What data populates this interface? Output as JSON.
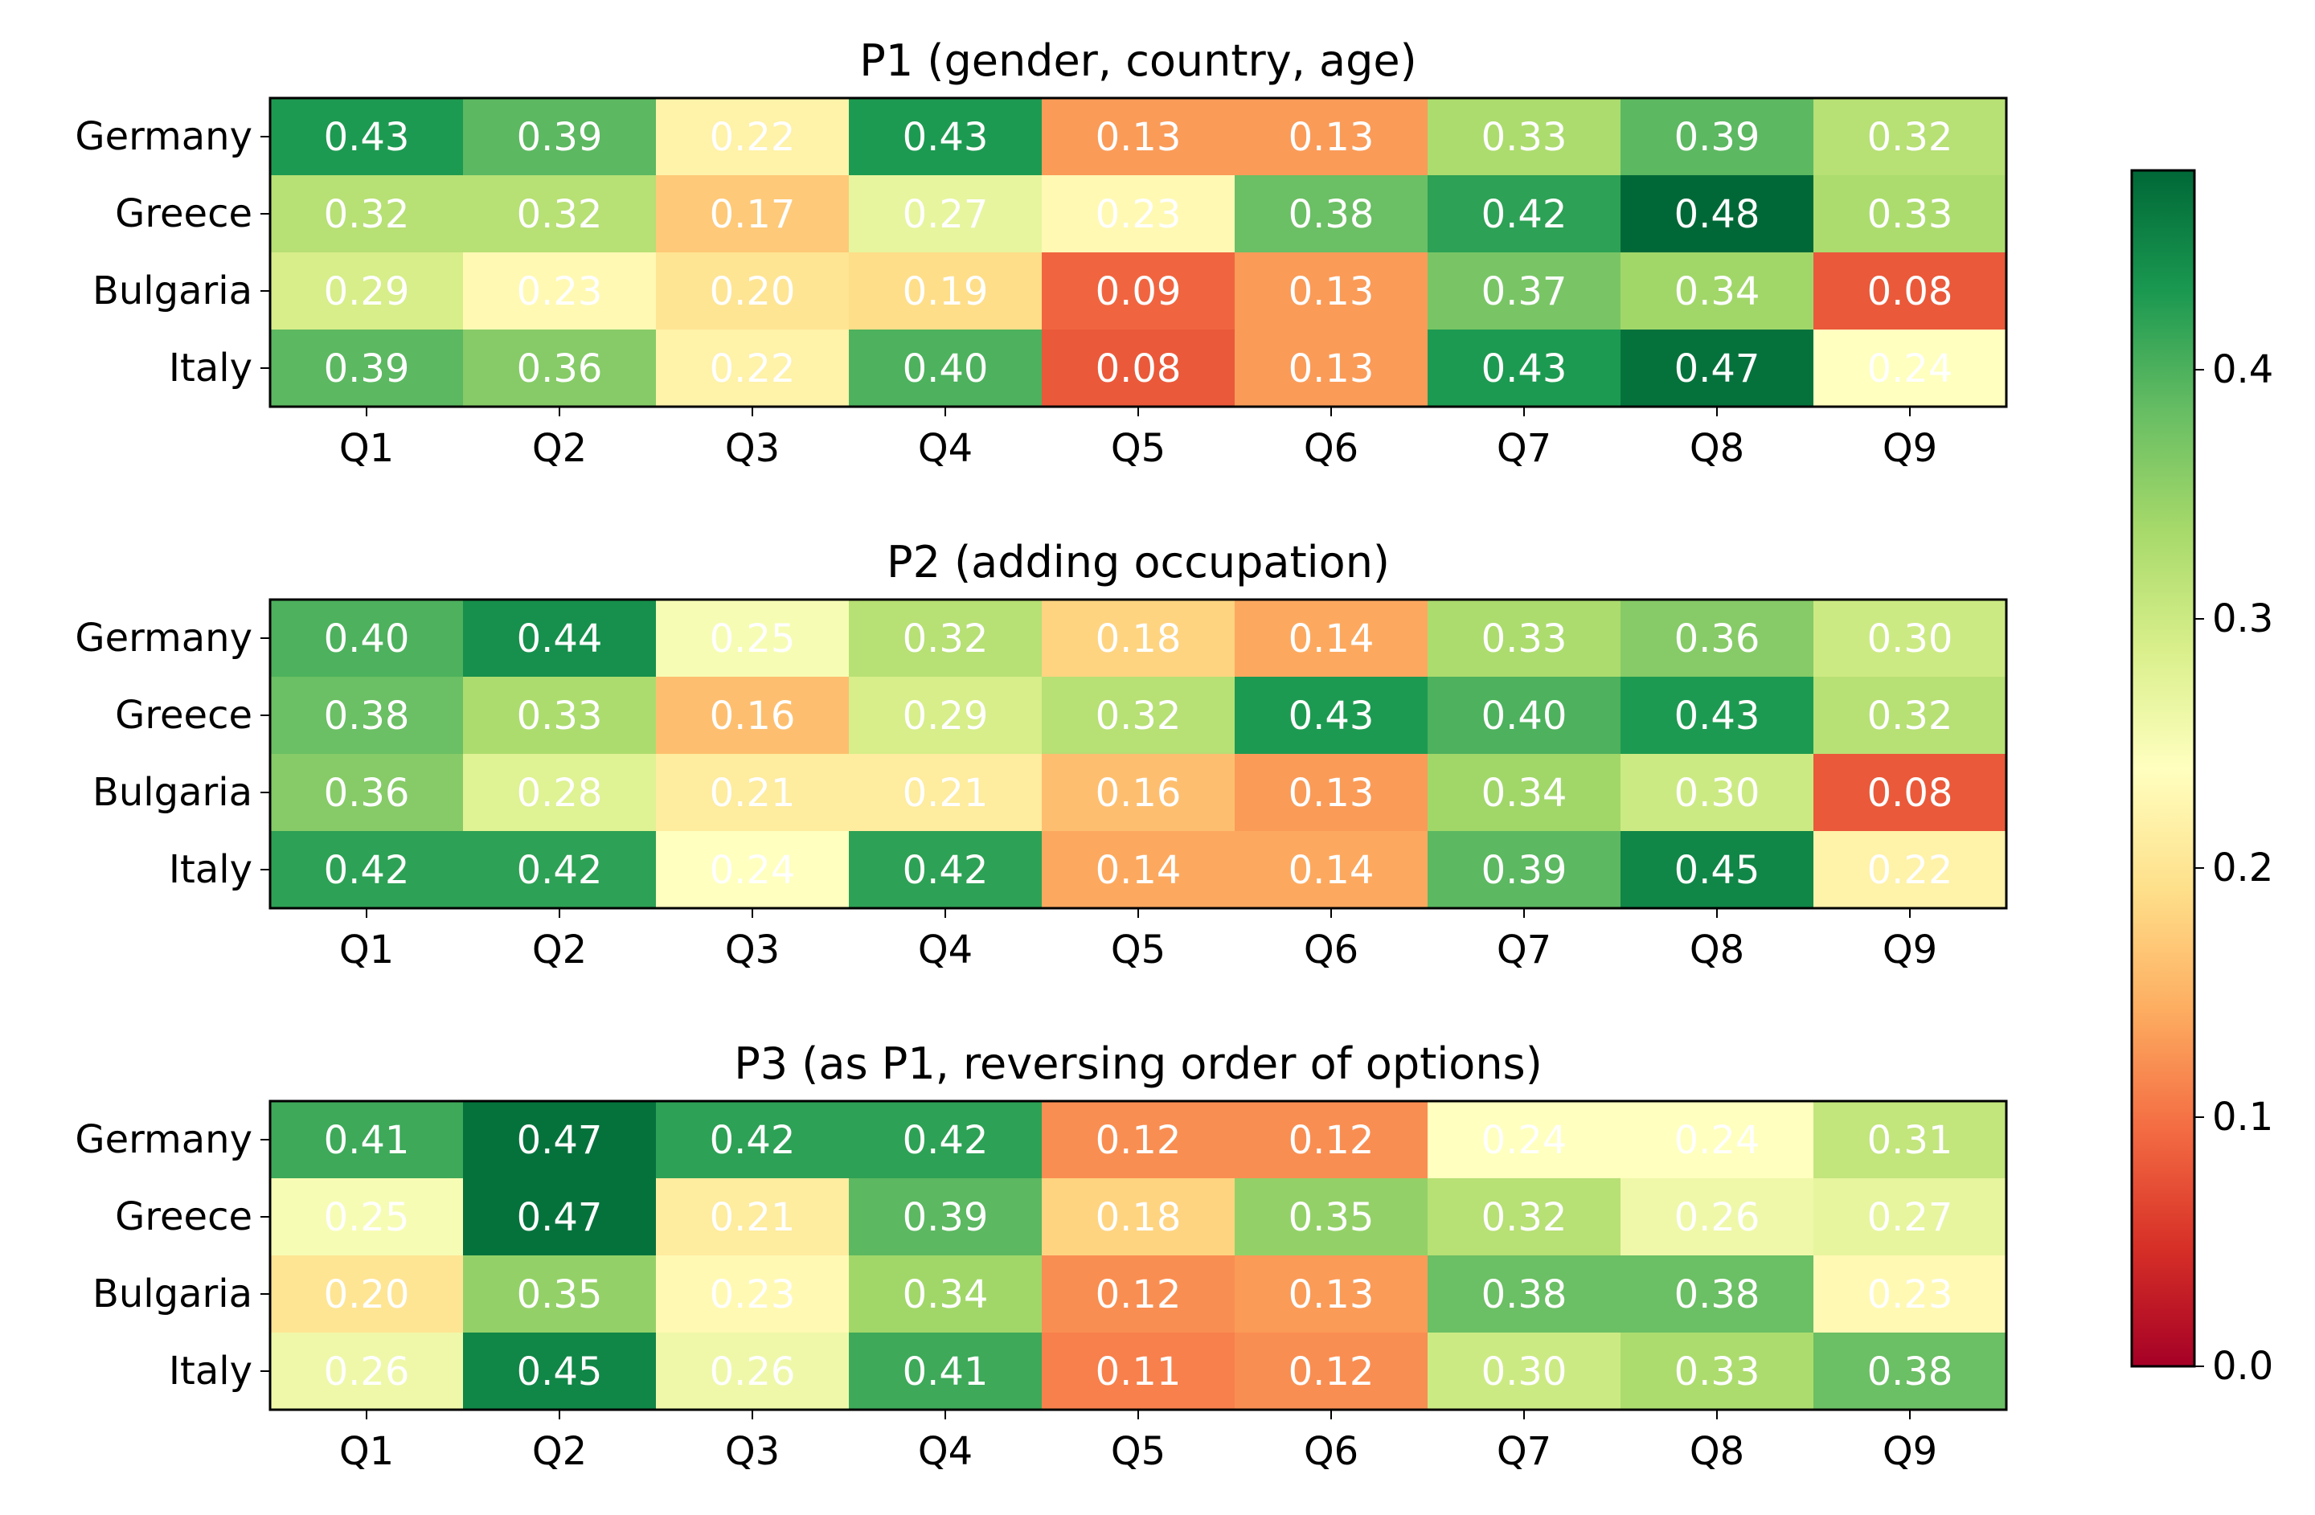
{
  "chart_data": [
    {
      "type": "heatmap",
      "title": "P1 (gender, country, age)",
      "rows": [
        "Germany",
        "Greece",
        "Bulgaria",
        "Italy"
      ],
      "columns": [
        "Q1",
        "Q2",
        "Q3",
        "Q4",
        "Q5",
        "Q6",
        "Q7",
        "Q8",
        "Q9"
      ],
      "values": [
        [
          0.43,
          0.39,
          0.22,
          0.43,
          0.13,
          0.13,
          0.33,
          0.39,
          0.32
        ],
        [
          0.32,
          0.32,
          0.17,
          0.27,
          0.23,
          0.38,
          0.42,
          0.48,
          0.33
        ],
        [
          0.29,
          0.23,
          0.2,
          0.19,
          0.09,
          0.13,
          0.37,
          0.34,
          0.08
        ],
        [
          0.39,
          0.36,
          0.22,
          0.4,
          0.08,
          0.13,
          0.43,
          0.47,
          0.24
        ]
      ]
    },
    {
      "type": "heatmap",
      "title": "P2 (adding occupation)",
      "rows": [
        "Germany",
        "Greece",
        "Bulgaria",
        "Italy"
      ],
      "columns": [
        "Q1",
        "Q2",
        "Q3",
        "Q4",
        "Q5",
        "Q6",
        "Q7",
        "Q8",
        "Q9"
      ],
      "values": [
        [
          0.4,
          0.44,
          0.25,
          0.32,
          0.18,
          0.14,
          0.33,
          0.36,
          0.3
        ],
        [
          0.38,
          0.33,
          0.16,
          0.29,
          0.32,
          0.43,
          0.4,
          0.43,
          0.32
        ],
        [
          0.36,
          0.28,
          0.21,
          0.21,
          0.16,
          0.13,
          0.34,
          0.3,
          0.08
        ],
        [
          0.42,
          0.42,
          0.24,
          0.42,
          0.14,
          0.14,
          0.39,
          0.45,
          0.22
        ]
      ]
    },
    {
      "type": "heatmap",
      "title": "P3 (as P1, reversing order of options)",
      "rows": [
        "Germany",
        "Greece",
        "Bulgaria",
        "Italy"
      ],
      "columns": [
        "Q1",
        "Q2",
        "Q3",
        "Q4",
        "Q5",
        "Q6",
        "Q7",
        "Q8",
        "Q9"
      ],
      "values": [
        [
          0.41,
          0.47,
          0.42,
          0.42,
          0.12,
          0.12,
          0.24,
          0.24,
          0.31
        ],
        [
          0.25,
          0.47,
          0.21,
          0.39,
          0.18,
          0.35,
          0.32,
          0.26,
          0.27
        ],
        [
          0.2,
          0.35,
          0.23,
          0.34,
          0.12,
          0.13,
          0.38,
          0.38,
          0.23
        ],
        [
          0.26,
          0.45,
          0.26,
          0.41,
          0.11,
          0.12,
          0.3,
          0.33,
          0.38
        ]
      ]
    }
  ],
  "colorbar": {
    "colormap": "RdYlGn",
    "range": [
      0,
      0.48
    ],
    "ticks": [
      0.0,
      0.1,
      0.2,
      0.3,
      0.4
    ],
    "tick_labels": [
      "0.0",
      "0.1",
      "0.2",
      "0.3",
      "0.4"
    ]
  },
  "cell_text_color": "#ffffff"
}
